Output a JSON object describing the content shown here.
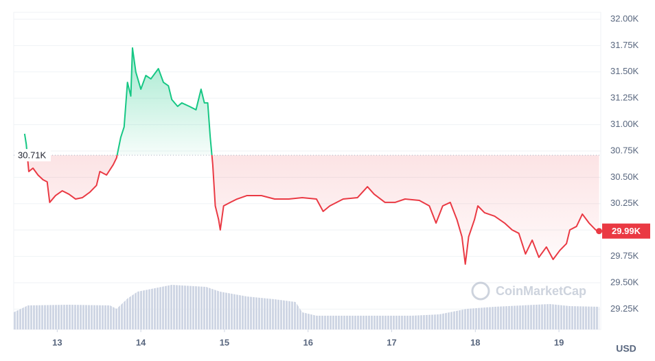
{
  "chart_data": {
    "type": "line",
    "x": [
      12.61,
      12.63,
      12.66,
      12.71,
      12.77,
      12.83,
      12.88,
      12.91,
      12.98,
      13.06,
      13.14,
      13.22,
      13.3,
      13.39,
      13.47,
      13.51,
      13.59,
      13.67,
      13.71,
      13.76,
      13.8,
      13.84,
      13.88,
      13.9,
      13.94,
      14.0,
      14.06,
      14.12,
      14.21,
      14.27,
      14.33,
      14.37,
      14.44,
      14.49,
      14.58,
      14.66,
      14.72,
      14.76,
      14.8,
      14.83,
      14.86,
      14.89,
      14.93,
      14.95,
      14.99,
      15.07,
      15.15,
      15.27,
      15.44,
      15.6,
      15.77,
      15.93,
      16.1,
      16.18,
      16.26,
      16.42,
      16.59,
      16.71,
      16.79,
      16.92,
      17.04,
      17.16,
      17.33,
      17.45,
      17.53,
      17.61,
      17.7,
      17.78,
      17.84,
      17.88,
      17.92,
      17.99,
      18.03,
      18.11,
      18.23,
      18.35,
      18.44,
      18.52,
      18.6,
      18.68,
      18.76,
      18.85,
      18.93,
      19.01,
      19.09,
      19.13,
      19.21,
      19.28,
      19.36,
      19.44,
      19.48
    ],
    "series": [
      {
        "values": [
          30913,
          30815,
          30555,
          30587,
          30522,
          30477,
          30457,
          30262,
          30327,
          30372,
          30340,
          30294,
          30307,
          30359,
          30424,
          30555,
          30522,
          30620,
          30685,
          30880,
          30978,
          31401,
          31271,
          31727,
          31499,
          31336,
          31466,
          31434,
          31531,
          31401,
          31368,
          31238,
          31173,
          31206,
          31173,
          31141,
          31336,
          31206,
          31206,
          30880,
          30620,
          30229,
          30099,
          30001,
          30229,
          30262,
          30294,
          30327,
          30327,
          30294,
          30294,
          30307,
          30294,
          30177,
          30229,
          30294,
          30307,
          30411,
          30340,
          30262,
          30262,
          30294,
          30281,
          30229,
          30066,
          30229,
          30262,
          30099,
          29936,
          29676,
          29936,
          30099,
          30229,
          30164,
          30132,
          30066,
          30001,
          29969,
          29773,
          29904,
          29741,
          29839,
          29721,
          29806,
          29871,
          30001,
          30034,
          30151,
          30066,
          30001,
          29990
        ],
        "color_up": "#16c784",
        "color_down": "#ea3943"
      }
    ],
    "volume": {
      "x": [
        12.48,
        12.65,
        13.14,
        13.63,
        13.71,
        13.84,
        13.96,
        14.37,
        14.78,
        14.95,
        15.27,
        15.6,
        15.85,
        15.93,
        16.1,
        16.59,
        17.24,
        17.57,
        17.9,
        18.23,
        18.89,
        19.13,
        19.48
      ],
      "values": [
        25,
        35,
        36,
        35,
        30,
        45,
        55,
        65,
        62,
        55,
        48,
        44,
        40,
        25,
        20,
        20,
        20,
        22,
        30,
        33,
        37,
        34,
        33
      ],
      "color": "#cfd6e4"
    },
    "xlim": [
      12.48,
      19.5
    ],
    "xticks": [
      13,
      14,
      15,
      16,
      17,
      18,
      19
    ],
    "ylim": [
      29057,
      32052
    ],
    "yticks": [
      {
        "value": 29250,
        "label": "29.25K"
      },
      {
        "value": 29500,
        "label": "29.50K"
      },
      {
        "value": 29750,
        "label": "29.75K"
      },
      {
        "value": 30000,
        "label": "30.00K"
      },
      {
        "value": 30250,
        "label": "30.25K"
      },
      {
        "value": 30500,
        "label": "30.50K"
      },
      {
        "value": 30750,
        "label": "30.75K"
      },
      {
        "value": 31000,
        "label": "31.00K"
      },
      {
        "value": 31250,
        "label": "31.25K"
      },
      {
        "value": 31500,
        "label": "31.50K"
      },
      {
        "value": 31750,
        "label": "31.75K"
      },
      {
        "value": 32000,
        "label": "32.00K"
      }
    ],
    "baseline": {
      "value": 30710,
      "label": "30.71K"
    },
    "last_price": {
      "value": 29990,
      "label": "29.99K"
    },
    "currency": "USD",
    "watermark": "CoinMarketCap",
    "grid": true
  }
}
